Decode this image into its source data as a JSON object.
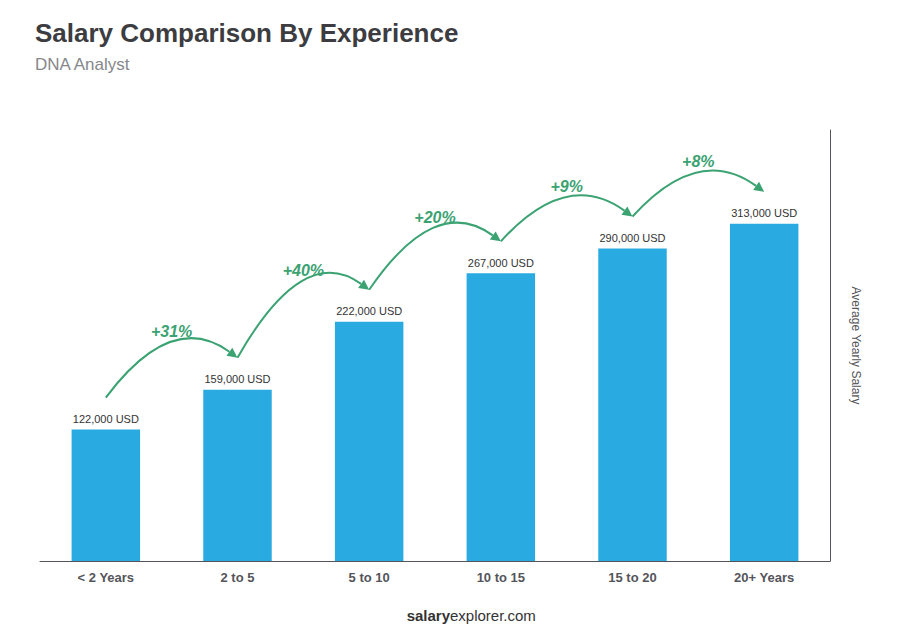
{
  "chart_data": {
    "type": "bar",
    "title": "Salary Comparison By Experience",
    "subtitle": "DNA Analyst",
    "categories": [
      "< 2 Years",
      "2 to 5",
      "5 to 10",
      "10 to 15",
      "15 to 20",
      "20+ Years"
    ],
    "values": [
      122000,
      159000,
      222000,
      267000,
      290000,
      313000
    ],
    "value_labels": [
      "122,000 USD",
      "159,000 USD",
      "222,000 USD",
      "267,000 USD",
      "290,000 USD",
      "313,000 USD"
    ],
    "data_labels": true,
    "color": "#29ABE2",
    "ylabel": "Average Yearly Salary",
    "ylim": [
      0,
      400000
    ],
    "tick_labels": "x",
    "grid": false,
    "annotations": [
      {
        "text": "+31%",
        "from": "< 2 Years",
        "to": "2 to 5"
      },
      {
        "text": "+40%",
        "from": "2 to 5",
        "to": "5 to 10"
      },
      {
        "text": "+20%",
        "from": "5 to 10",
        "to": "10 to 15"
      },
      {
        "text": "+9%",
        "from": "10 to 15",
        "to": "15 to 20"
      },
      {
        "text": "+8%",
        "from": "15 to 20",
        "to": "20+ Years"
      }
    ],
    "footer": [
      "salary",
      "explorer.com"
    ]
  }
}
